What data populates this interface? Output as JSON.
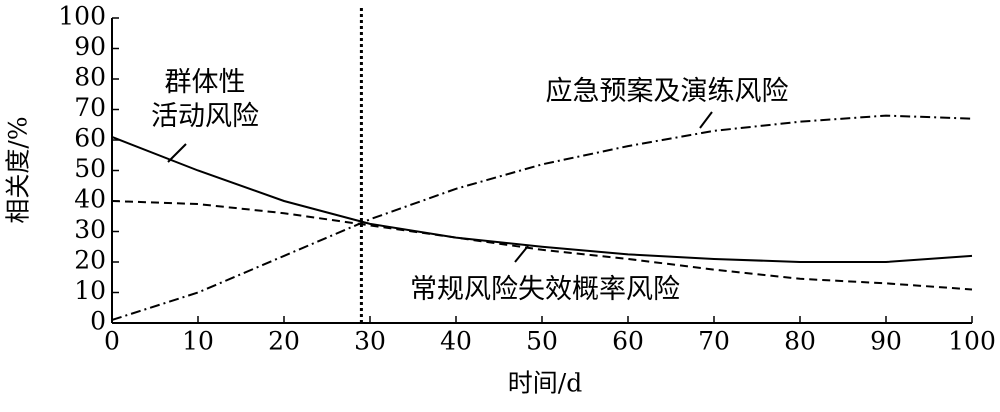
{
  "chart_data": {
    "type": "line",
    "x_label": "时间/d",
    "y_label": "相关度/%",
    "x": [
      0,
      10,
      20,
      30,
      40,
      50,
      60,
      70,
      80,
      90,
      100
    ],
    "series": [
      {
        "name": "群体性\n活动风险",
        "color": "#000000",
        "linestyle": "solid",
        "values": [
          61,
          50,
          40,
          32.5,
          28,
          25,
          22.5,
          21,
          20,
          20,
          22
        ]
      },
      {
        "name": "常规风险失效概率风险",
        "color": "#000000",
        "linestyle": "dashed",
        "values": [
          40,
          39,
          36,
          32,
          28,
          24,
          21,
          17.5,
          14.5,
          13,
          11
        ]
      },
      {
        "name": "应急预案及演练风险",
        "color": "#000000",
        "linestyle": "dashdot",
        "values": [
          1,
          10,
          22,
          34,
          44,
          52,
          58,
          63,
          66,
          68,
          67
        ]
      }
    ],
    "vline_x": 29,
    "xlim": [
      0,
      100
    ],
    "xticks": [
      0,
      10,
      20,
      30,
      40,
      50,
      60,
      70,
      80,
      90,
      100
    ],
    "ylim": [
      0,
      100
    ],
    "yticks": [
      0,
      10,
      20,
      30,
      40,
      50,
      60,
      70,
      80,
      90,
      100
    ]
  }
}
